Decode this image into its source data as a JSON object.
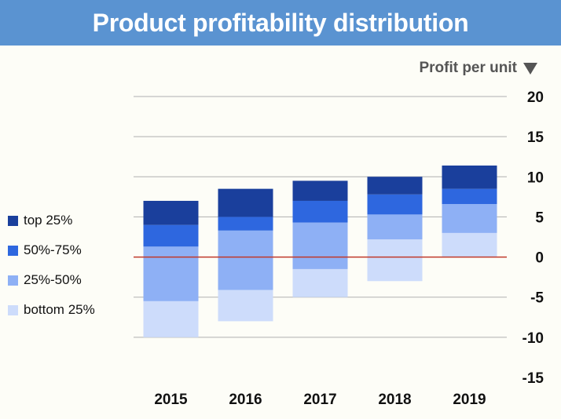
{
  "header": {
    "title": "Product profitability distribution"
  },
  "unit_label": "Profit per unit",
  "unit_arrow_icon": "triangle-down-icon",
  "colors": {
    "top": "#1a3f9c",
    "q3": "#2e67df",
    "q2": "#8eb0f5",
    "bottom": "#cddcfb",
    "zero_line": "#c0392b",
    "grid": "#b0b0b0",
    "banner": "#5a93d1"
  },
  "chart_data": {
    "type": "bar",
    "stacked": true,
    "title": "Product profitability distribution",
    "ylabel": "Profit per unit",
    "categories": [
      "2015",
      "2016",
      "2017",
      "2018",
      "2019"
    ],
    "series": [
      {
        "name": "bottom 25%",
        "key": "bottom",
        "ranges": [
          [
            -10,
            -5.5
          ],
          [
            -8,
            -4.1
          ],
          [
            -5,
            -1.5
          ],
          [
            -3,
            2.2
          ],
          [
            0,
            3
          ]
        ]
      },
      {
        "name": "25%-50%",
        "key": "q2",
        "ranges": [
          [
            -5.5,
            1.3
          ],
          [
            -4.1,
            3.3
          ],
          [
            -1.5,
            4.3
          ],
          [
            2.2,
            5.3
          ],
          [
            3,
            6.6
          ]
        ]
      },
      {
        "name": "50%-75%",
        "key": "q3",
        "ranges": [
          [
            1.3,
            4
          ],
          [
            3.3,
            5
          ],
          [
            4.3,
            7
          ],
          [
            5.3,
            7.8
          ],
          [
            6.6,
            8.5
          ]
        ]
      },
      {
        "name": "top 25%",
        "key": "top",
        "ranges": [
          [
            4,
            7
          ],
          [
            5,
            8.5
          ],
          [
            7,
            9.5
          ],
          [
            7.8,
            10
          ],
          [
            8.5,
            11.4
          ]
        ]
      }
    ],
    "ylim": [
      -15,
      20
    ],
    "yticks": [
      20,
      15,
      10,
      5,
      0,
      -5,
      -10,
      -15
    ],
    "grid": true,
    "y_axis_position": "right",
    "legend_position": "left"
  },
  "legend": [
    {
      "label": "top 25%",
      "key": "top"
    },
    {
      "label": "50%-75%",
      "key": "q3"
    },
    {
      "label": "25%-50%",
      "key": "q2"
    },
    {
      "label": "bottom 25%",
      "key": "bottom"
    }
  ]
}
